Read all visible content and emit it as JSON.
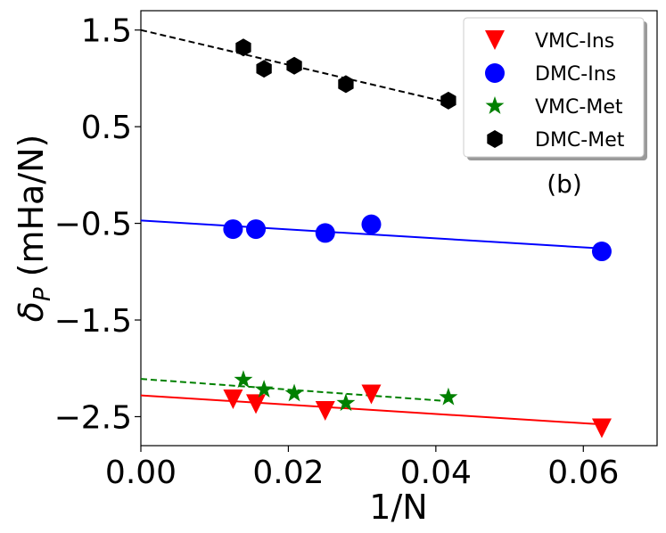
{
  "chart_data": {
    "type": "scatter",
    "title": "",
    "xlabel": "1/N",
    "ylabel_symbol": "δ",
    "ylabel_subscript": "P",
    "ylabel_units": " (mHa/N)",
    "xlim": [
      0.0,
      0.07
    ],
    "ylim": [
      -2.8,
      1.7
    ],
    "xticks": [
      0.0,
      0.02,
      0.04,
      0.06
    ],
    "xtick_labels": [
      "0.00",
      "0.02",
      "0.04",
      "0.06"
    ],
    "yticks": [
      1.5,
      0.5,
      -0.5,
      -1.5,
      -2.5
    ],
    "ytick_labels": [
      "1.5",
      "0.5",
      "−0.5",
      "−1.5",
      "−2.5"
    ],
    "annotation": "(b)",
    "legend_position": "top-right",
    "series": [
      {
        "name": "VMC-Ins",
        "marker": "triangle-down",
        "color": "#ff0000",
        "x": [
          0.0125,
          0.0156,
          0.025,
          0.03125,
          0.0625
        ],
        "y": [
          -2.32,
          -2.37,
          -2.44,
          -2.27,
          -2.62
        ],
        "fit": {
          "x": [
            0.0,
            0.0625
          ],
          "y": [
            -2.28,
            -2.58
          ],
          "style": "solid"
        }
      },
      {
        "name": "DMC-Ins",
        "marker": "circle",
        "color": "#0000ff",
        "x": [
          0.0125,
          0.0156,
          0.025,
          0.03125,
          0.0625
        ],
        "y": [
          -0.56,
          -0.56,
          -0.6,
          -0.51,
          -0.79
        ],
        "fit": {
          "x": [
            0.0,
            0.0625
          ],
          "y": [
            -0.47,
            -0.76
          ],
          "style": "solid"
        }
      },
      {
        "name": "VMC-Met",
        "marker": "star",
        "color": "#008000",
        "x": [
          0.0139,
          0.0167,
          0.0208,
          0.0278,
          0.0417
        ],
        "y": [
          -2.12,
          -2.22,
          -2.26,
          -2.36,
          -2.3
        ],
        "fit": {
          "x": [
            0.0,
            0.0417
          ],
          "y": [
            -2.11,
            -2.34
          ],
          "style": "dashed"
        }
      },
      {
        "name": "DMC-Met",
        "marker": "hexagon",
        "color": "#000000",
        "x": [
          0.0139,
          0.0167,
          0.0208,
          0.0278,
          0.0417
        ],
        "y": [
          1.32,
          1.1,
          1.13,
          0.94,
          0.77
        ],
        "fit": {
          "x": [
            0.0,
            0.0417
          ],
          "y": [
            1.5,
            0.75
          ],
          "style": "dashed"
        }
      }
    ]
  }
}
